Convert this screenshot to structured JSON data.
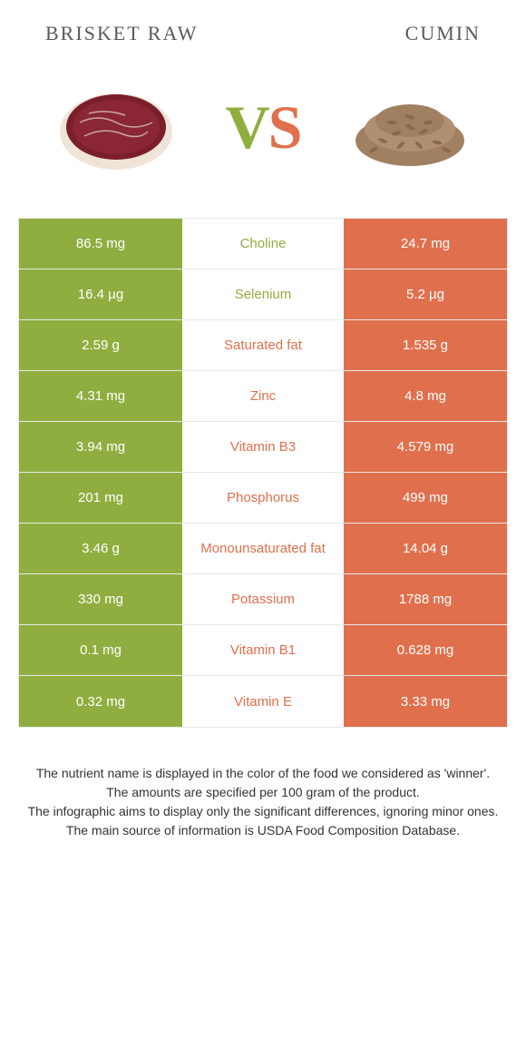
{
  "header": {
    "left_title": "BRISKET RAW",
    "right_title": "CUMIN",
    "vs_v": "V",
    "vs_s": "S"
  },
  "colors": {
    "left_bg": "#8fae3f",
    "right_bg": "#e0704d",
    "mid_bg": "#ffffff",
    "left_text": "#8fae3f",
    "right_text": "#e0704d",
    "border": "#e8e8e8",
    "body_text": "#333333"
  },
  "rows": [
    {
      "left": "86.5 mg",
      "label": "Choline",
      "right": "24.7 mg",
      "winner": "left"
    },
    {
      "left": "16.4 µg",
      "label": "Selenium",
      "right": "5.2 µg",
      "winner": "left"
    },
    {
      "left": "2.59 g",
      "label": "Saturated fat",
      "right": "1.535 g",
      "winner": "right"
    },
    {
      "left": "4.31 mg",
      "label": "Zinc",
      "right": "4.8 mg",
      "winner": "right"
    },
    {
      "left": "3.94 mg",
      "label": "Vitamin B3",
      "right": "4.579 mg",
      "winner": "right"
    },
    {
      "left": "201 mg",
      "label": "Phosphorus",
      "right": "499 mg",
      "winner": "right"
    },
    {
      "left": "3.46 g",
      "label": "Monounsaturated fat",
      "right": "14.04 g",
      "winner": "right"
    },
    {
      "left": "330 mg",
      "label": "Potassium",
      "right": "1788 mg",
      "winner": "right"
    },
    {
      "left": "0.1 mg",
      "label": "Vitamin B1",
      "right": "0.628 mg",
      "winner": "right"
    },
    {
      "left": "0.32 mg",
      "label": "Vitamin E",
      "right": "3.33 mg",
      "winner": "right"
    }
  ],
  "footnotes": [
    "The nutrient name is displayed in the color of the food we considered as 'winner'.",
    "The amounts are specified per 100 gram of the product.",
    "The infographic aims to display only the significant differences, ignoring minor ones.",
    "The main source of information is USDA Food Composition Database."
  ]
}
